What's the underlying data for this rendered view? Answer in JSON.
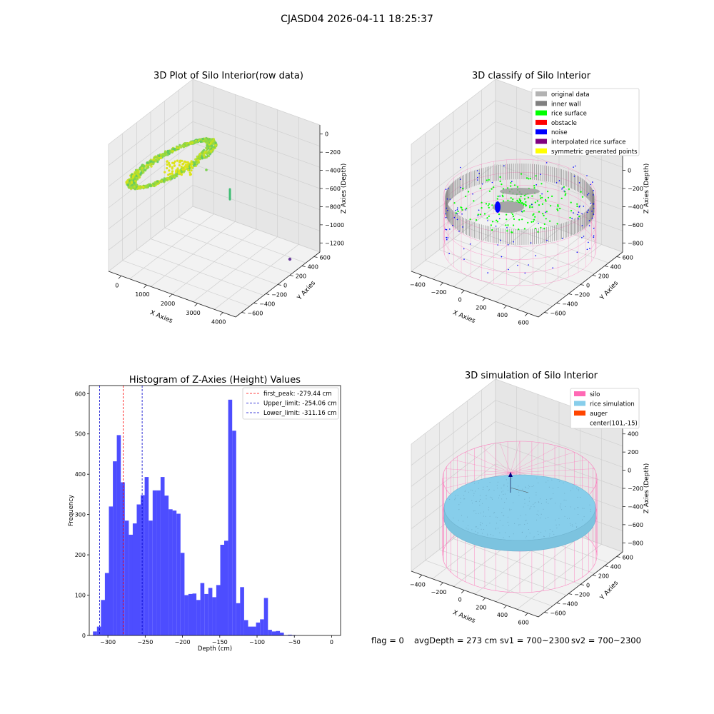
{
  "figure": {
    "suptitle": "CJASD04 2026-04-11 18:25:37",
    "status_line": {
      "flag": "flag = 0",
      "avg_depth": "avgDepth = 273 cm",
      "sv1": "sv1 = 700~2300",
      "sv2": "sv2 = 700~2300"
    }
  },
  "colors": {
    "original_data": "#b3b3b3",
    "inner_wall": "#808080",
    "rice_surface": "#00ff00",
    "obstacle": "#ff0000",
    "noise": "#0000ff",
    "interpolated_rice_surface": "#800080",
    "symmetric_generated_points": "#ffff00",
    "silo": "#ff69b4",
    "rice_simulation": "#87ceeb",
    "auger": "#ff4500",
    "hist_bar": "#4d4dff",
    "first_peak_line": "#ff0000",
    "limit_line": "#0000cc"
  },
  "chart_data": [
    {
      "type": "scatter",
      "subtype": "3d",
      "title": "3D Plot of Silo Interior(row data)",
      "xlabel": "X Axies",
      "ylabel": "Y Axies",
      "zlabel": "Z Axies (Depth)",
      "x_ticks": [
        "0",
        "1000",
        "2000",
        "3000",
        "4000"
      ],
      "y_ticks": [
        "600",
        "400",
        "200",
        "0",
        "−200",
        "−400",
        "−600"
      ],
      "z_ticks": [
        "0",
        "−200",
        "−400",
        "−600",
        "−800",
        "−1000",
        "−1200"
      ],
      "xlim": [
        -500,
        4300
      ],
      "ylim": [
        -700,
        700
      ],
      "zlim": [
        -1350,
        50
      ],
      "colormap": "viridis",
      "grid": true
    },
    {
      "type": "scatter",
      "subtype": "3d",
      "title": "3D classify of Silo Interior",
      "xlabel": "X Axies",
      "ylabel": "Y Axies",
      "zlabel": "Z Axies (Depth)",
      "x_ticks": [
        "−400",
        "−200",
        "0",
        "200",
        "400",
        "600"
      ],
      "y_ticks": [
        "600",
        "400",
        "200",
        "0",
        "−200",
        "−400",
        "−600"
      ],
      "z_ticks": [
        "400",
        "200",
        "0",
        "−200",
        "−400",
        "−600",
        "−800"
      ],
      "legend_position": "top-right",
      "legend": [
        {
          "label": "original data",
          "color_key": "original_data"
        },
        {
          "label": "inner wall",
          "color_key": "inner_wall"
        },
        {
          "label": "rice surface",
          "color_key": "rice_surface"
        },
        {
          "label": "obstacle",
          "color_key": "obstacle"
        },
        {
          "label": "noise",
          "color_key": "noise"
        },
        {
          "label": "interpolated rice surface",
          "color_key": "interpolated_rice_surface"
        },
        {
          "label": "symmetric generated points",
          "color_key": "symmetric_generated_points"
        }
      ],
      "grid": true
    },
    {
      "type": "bar",
      "subtype": "histogram",
      "title": "Histogram of Z-Axies (Height) Values",
      "xlabel": "Depth (cm)",
      "ylabel": "Frequency",
      "xlim": [
        -325,
        12
      ],
      "ylim": [
        0,
        620
      ],
      "x_ticks": [
        -300,
        -250,
        -200,
        -150,
        -100,
        -50,
        0
      ],
      "x_tick_labels": [
        "−300",
        "−250",
        "−200",
        "−150",
        "−100",
        "−50",
        "0"
      ],
      "y_ticks": [
        0,
        100,
        200,
        300,
        400,
        500,
        600
      ],
      "bin_start": -320,
      "bin_width": 5.333,
      "values": [
        10,
        22,
        88,
        155,
        320,
        432,
        497,
        380,
        285,
        250,
        278,
        325,
        348,
        393,
        285,
        360,
        360,
        393,
        347,
        313,
        310,
        302,
        205,
        100,
        103,
        104,
        88,
        130,
        103,
        118,
        95,
        125,
        225,
        235,
        585,
        508,
        80,
        120,
        38,
        22,
        22,
        32,
        40,
        93,
        14,
        10,
        11,
        7,
        1,
        2,
        1
      ],
      "vlines": [
        {
          "label": "first_peak: -279.44 cm",
          "x": -279.44,
          "color_key": "first_peak_line"
        },
        {
          "label": "Upper_limit: -254.06 cm",
          "x": -254.06,
          "color_key": "limit_line"
        },
        {
          "label": "Lower_limit: -311.16 cm",
          "x": -311.16,
          "color_key": "limit_line"
        }
      ],
      "legend_position": "top-right",
      "grid": false
    },
    {
      "type": "scatter",
      "subtype": "3d",
      "title": "3D simulation of Silo Interior",
      "xlabel": "X Axies",
      "ylabel": "Y Axies",
      "zlabel": "Z Axies (Depth)",
      "x_ticks": [
        "−400",
        "−200",
        "0",
        "200",
        "400",
        "600"
      ],
      "y_ticks": [
        "600",
        "400",
        "200",
        "0",
        "−200",
        "−400",
        "−600"
      ],
      "z_ticks": [
        "400",
        "200",
        "0",
        "−200",
        "−400",
        "−600",
        "−800"
      ],
      "legend_position": "top-right",
      "legend": [
        {
          "label": "silo",
          "color_key": "silo"
        },
        {
          "label": "rice simulation",
          "color_key": "rice_simulation"
        },
        {
          "label": "auger",
          "color_key": "auger"
        },
        {
          "label": "center(101,-15)",
          "color_key": ""
        }
      ],
      "grid": true
    }
  ]
}
